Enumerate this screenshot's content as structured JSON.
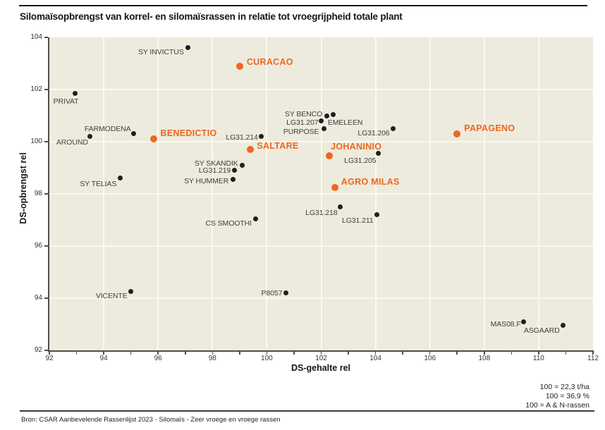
{
  "header": {
    "title": "Silomaïsopbrengst van korrel- en silomaïsrassen in relatie tot vroegrijpheid totale plant"
  },
  "chart_data": {
    "type": "scatter",
    "title": "Silomaïsopbrengst van korrel- en silomaïsrassen in relatie tot vroegrijpheid totale plant",
    "xlabel": "DS-gehalte rel",
    "ylabel": "DS-opbrengst rel",
    "xlim": [
      92,
      112
    ],
    "ylim": [
      92,
      104
    ],
    "x_ticks_labeled": [
      92,
      94,
      96,
      98,
      100,
      102,
      104,
      106,
      108,
      110,
      112
    ],
    "x_ticks_minor_step": 1,
    "y_ticks_labeled": [
      92,
      94,
      96,
      98,
      100,
      102,
      104
    ],
    "grid": {
      "on": true,
      "step": 2,
      "color": "#fbfaf1"
    },
    "plot_background": "#edebdd",
    "legend_position": "none",
    "series": [
      {
        "name": "rassen",
        "marker_color": "#1f1f1f",
        "points": [
          {
            "label": "SY INVICTUS",
            "x": 97.1,
            "y": 103.6,
            "anchor": "end",
            "dx": -6,
            "dy": 6
          },
          {
            "label": "PRIVAT",
            "x": 92.95,
            "y": 101.85,
            "anchor": "start",
            "dx": -31,
            "dy": 11
          },
          {
            "label": "FARMODENA",
            "x": 95.1,
            "y": 100.3,
            "anchor": "end",
            "dx": -4,
            "dy": -7
          },
          {
            "label": "AROUND",
            "x": 93.5,
            "y": 100.2,
            "anchor": "end",
            "dx": -3,
            "dy": 8
          },
          {
            "label": "LG31.214",
            "x": 99.8,
            "y": 100.2,
            "anchor": "end",
            "dx": -5,
            "dy": 1
          },
          {
            "label": "SY BENCO",
            "x": 102.2,
            "y": 101.0,
            "anchor": "end",
            "dx": -6,
            "dy": -2
          },
          {
            "label": "EMELEEN",
            "x": 102.45,
            "y": 101.05,
            "anchor": "start",
            "dx": -8,
            "dy": 12
          },
          {
            "label": "LG31.207",
            "x": 102.0,
            "y": 100.8,
            "anchor": "end",
            "dx": -4,
            "dy": 3
          },
          {
            "label": "PURPOSE",
            "x": 102.1,
            "y": 100.5,
            "anchor": "end",
            "dx": -7,
            "dy": 4
          },
          {
            "label": "LG31.206",
            "x": 104.65,
            "y": 100.5,
            "anchor": "end",
            "dx": -5,
            "dy": 6
          },
          {
            "label": "LG31.205",
            "x": 104.1,
            "y": 99.55,
            "anchor": "end",
            "dx": -3,
            "dy": 10
          },
          {
            "label": "SY SKANDIK",
            "x": 99.1,
            "y": 99.1,
            "anchor": "end",
            "dx": -6,
            "dy": -2
          },
          {
            "label": "LG31.219",
            "x": 98.8,
            "y": 98.9,
            "anchor": "end",
            "dx": -5,
            "dy": 0
          },
          {
            "label": "SY HUMMER",
            "x": 98.75,
            "y": 98.55,
            "anchor": "end",
            "dx": -6,
            "dy": 2
          },
          {
            "label": "SY TELIAS",
            "x": 94.6,
            "y": 98.6,
            "anchor": "end",
            "dx": -5,
            "dy": 8
          },
          {
            "label": "CS SMOOTHI",
            "x": 99.6,
            "y": 97.05,
            "anchor": "end",
            "dx": -6,
            "dy": 7
          },
          {
            "label": "LG31.218",
            "x": 102.7,
            "y": 97.5,
            "anchor": "end",
            "dx": -4,
            "dy": 8
          },
          {
            "label": "LG31.211",
            "x": 104.05,
            "y": 97.2,
            "anchor": "end",
            "dx": -5,
            "dy": 8
          },
          {
            "label": "VICENTE",
            "x": 95.0,
            "y": 94.25,
            "anchor": "end",
            "dx": -5,
            "dy": 6
          },
          {
            "label": "P8057",
            "x": 100.7,
            "y": 94.2,
            "anchor": "end",
            "dx": -5,
            "dy": 0
          },
          {
            "label": "MAS08.F",
            "x": 109.45,
            "y": 93.1,
            "anchor": "end",
            "dx": -4,
            "dy": 4
          },
          {
            "label": "ASGAARD",
            "x": 110.9,
            "y": 92.95,
            "anchor": "end",
            "dx": -5,
            "dy": 7
          }
        ]
      },
      {
        "name": "uitgelichte rassen",
        "marker_color": "#ef661e",
        "points": [
          {
            "label": "BENEDICTIO",
            "x": 95.85,
            "y": 100.1,
            "anchor": "start",
            "dx": 9,
            "dy": -8
          },
          {
            "label": "CURACAO",
            "x": 99.0,
            "y": 102.9,
            "anchor": "start",
            "dx": 10,
            "dy": -6
          },
          {
            "label": "SALTARE",
            "x": 99.4,
            "y": 99.7,
            "anchor": "start",
            "dx": 9,
            "dy": -5
          },
          {
            "label": "JOHANINIO",
            "x": 102.3,
            "y": 99.45,
            "anchor": "start",
            "dx": 2,
            "dy": -13
          },
          {
            "label": "AGRO MILAS",
            "x": 102.5,
            "y": 98.25,
            "anchor": "start",
            "dx": 9,
            "dy": -8
          },
          {
            "label": "PAPAGENO",
            "x": 107.0,
            "y": 100.3,
            "anchor": "start",
            "dx": 10,
            "dy": -8
          }
        ]
      }
    ]
  },
  "notes": {
    "lines": [
      "100 = 22,3 t/ha",
      "100 = 36,9 %",
      "100 = A & N-rassen"
    ]
  },
  "source": {
    "text": "Bron: CSAR Aanbevelende Rassenlijst 2023 - Silomaïs - Zeer vroege en vroege rassen"
  },
  "colors": {
    "accent": "#ef661e",
    "marker_standard": "#1f1f1f",
    "plot_background": "#edebdd",
    "gridline": "#fbfaf1",
    "axis": "#4d4d4d"
  }
}
